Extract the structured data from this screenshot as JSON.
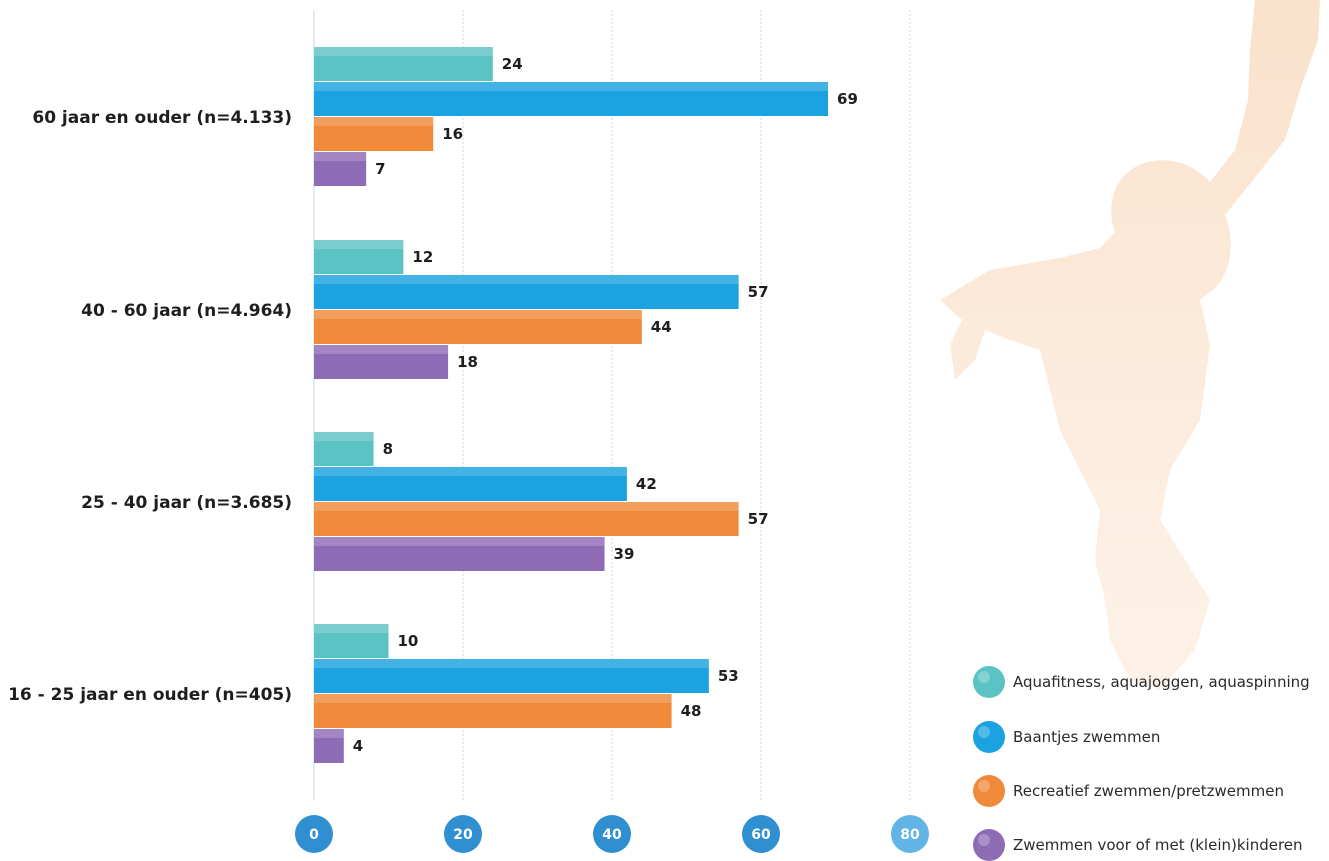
{
  "chart_data": {
    "type": "bar",
    "orientation": "horizontal",
    "title": "",
    "xlabel": "",
    "ylabel": "",
    "xlim": [
      0,
      80
    ],
    "ticks": [
      "0",
      "20",
      "40",
      "60",
      "80"
    ],
    "grid": true,
    "legend_position": "bottom-right",
    "categories": [
      "60 jaar en ouder (n=4.133)",
      "40 - 60 jaar (n=4.964)",
      "25 - 40 jaar (n=3.685)",
      "16 - 25 jaar en ouder (n=405)"
    ],
    "series": [
      {
        "name": "Aquafitness, aquajoggen, aquaspinning",
        "color": "#5cc3c4",
        "values": [
          24,
          12,
          8,
          10
        ]
      },
      {
        "name": "Baantjes zwemmen",
        "color": "#1aa3e0",
        "values": [
          69,
          57,
          42,
          53
        ]
      },
      {
        "name": "Recreatief zwemmen/pretzwemmen",
        "color": "#f08a3a",
        "values": [
          16,
          44,
          57,
          48
        ]
      },
      {
        "name": "Zwemmen voor of met (klein)kinderen",
        "color": "#8e6bb5",
        "values": [
          7,
          18,
          39,
          4
        ]
      }
    ]
  }
}
